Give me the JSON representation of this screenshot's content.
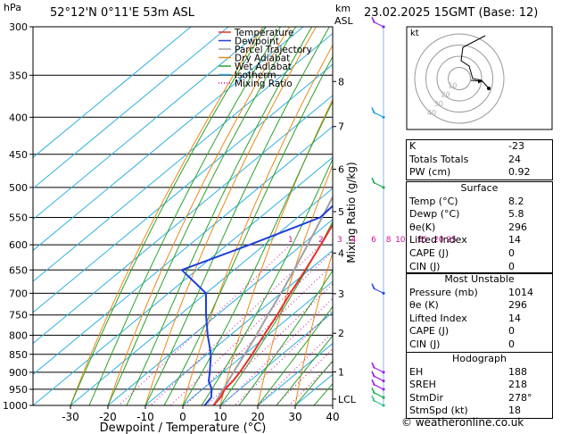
{
  "header": {
    "hpa_label": "hPa",
    "location": "52°12'N  0°11'E  53m  ASL",
    "km_label": "km",
    "asl_label": "ASL",
    "datetime": "23.02.2025  15GMT  (Base: 12)"
  },
  "chart_data": {
    "type": "skew-t",
    "xlabel": "Dewpoint / Temperature (°C)",
    "ylabel_left": "hPa",
    "ylabel_right": "Mixing Ratio (g/kg)",
    "x_ticks": [
      -30,
      -20,
      -10,
      0,
      10,
      20,
      30,
      40
    ],
    "x_range": [
      -40,
      40
    ],
    "pressure_ticks": [
      300,
      350,
      400,
      450,
      500,
      550,
      600,
      650,
      700,
      750,
      800,
      850,
      900,
      950,
      1000
    ],
    "pressure_range": [
      300,
      1000
    ],
    "km_ticks": [
      {
        "label": "8",
        "p": 357
      },
      {
        "label": "7",
        "p": 412
      },
      {
        "label": "6",
        "p": 472
      },
      {
        "label": "5",
        "p": 540
      },
      {
        "label": "4",
        "p": 616
      },
      {
        "label": "3",
        "p": 701
      },
      {
        "label": "2",
        "p": 795
      },
      {
        "label": "1",
        "p": 899
      },
      {
        "label": "LCL",
        "p": 980
      }
    ],
    "mixing_ratio_labels": [
      "1",
      "2",
      "3",
      "4",
      "6",
      "8",
      "10",
      "15",
      "20",
      "25"
    ],
    "mixing_ratio_values": [
      1,
      2,
      3,
      4,
      6,
      8,
      10,
      15,
      20,
      25
    ],
    "legend": {
      "position": "top-right",
      "entries": [
        {
          "name": "Temperature",
          "color": "#e8302a",
          "style": "solid"
        },
        {
          "name": "Dewpoint",
          "color": "#1f3fdc",
          "style": "solid"
        },
        {
          "name": "Parcel Trajectory",
          "color": "#a0a0a0",
          "style": "solid"
        },
        {
          "name": "Dry Adiabat",
          "color": "#e88a1a",
          "style": "solid"
        },
        {
          "name": "Wet Adiabat",
          "color": "#2ca02c",
          "style": "solid"
        },
        {
          "name": "Isotherm",
          "color": "#2fb0e0",
          "style": "solid"
        },
        {
          "name": "Mixing Ratio",
          "color": "#d0109a",
          "style": "dotted"
        }
      ]
    },
    "temperature": [
      {
        "p": 1000,
        "t": 8.2
      },
      {
        "p": 975,
        "t": 7.5
      },
      {
        "p": 950,
        "t": 6.0
      },
      {
        "p": 925,
        "t": 5.5
      },
      {
        "p": 900,
        "t": 4.5
      },
      {
        "p": 850,
        "t": 2.0
      },
      {
        "p": 800,
        "t": -1.0
      },
      {
        "p": 750,
        "t": -4.0
      },
      {
        "p": 700,
        "t": -7.5
      },
      {
        "p": 650,
        "t": -11.0
      },
      {
        "p": 600,
        "t": -15.0
      },
      {
        "p": 550,
        "t": -19.5
      },
      {
        "p": 500,
        "t": -23.0
      },
      {
        "p": 450,
        "t": -29.0
      },
      {
        "p": 400,
        "t": -35.0
      },
      {
        "p": 350,
        "t": -42.0
      },
      {
        "p": 300,
        "t": -50.0
      }
    ],
    "dewpoint": [
      {
        "p": 1000,
        "t": 5.8
      },
      {
        "p": 975,
        "t": 5.0
      },
      {
        "p": 950,
        "t": 2.5
      },
      {
        "p": 925,
        "t": -1.0
      },
      {
        "p": 900,
        "t": -3.5
      },
      {
        "p": 850,
        "t": -9.0
      },
      {
        "p": 800,
        "t": -16.0
      },
      {
        "p": 750,
        "t": -23.0
      },
      {
        "p": 700,
        "t": -30.0
      },
      {
        "p": 650,
        "t": -44.0
      },
      {
        "p": 600,
        "t": -34.0
      },
      {
        "p": 550,
        "t": -24.0
      },
      {
        "p": 500,
        "t": -25.0
      },
      {
        "p": 450,
        "t": -31.0
      },
      {
        "p": 400,
        "t": -36.0
      },
      {
        "p": 350,
        "t": -43.0
      },
      {
        "p": 300,
        "t": -51.0
      }
    ],
    "parcel": [
      {
        "p": 1000,
        "t": 8.2
      },
      {
        "p": 950,
        "t": 5.6
      },
      {
        "p": 900,
        "t": 2.8
      },
      {
        "p": 850,
        "t": 0.0
      },
      {
        "p": 800,
        "t": -3.0
      },
      {
        "p": 750,
        "t": -6.5
      },
      {
        "p": 700,
        "t": -10.0
      },
      {
        "p": 650,
        "t": -14.0
      },
      {
        "p": 600,
        "t": -18.5
      },
      {
        "p": 550,
        "t": -23.5
      },
      {
        "p": 500,
        "t": -29.0
      },
      {
        "p": 450,
        "t": -35.5
      },
      {
        "p": 400,
        "t": -42.5
      },
      {
        "p": 350,
        "t": -50.5
      },
      {
        "p": 300,
        "t": -59.5
      }
    ],
    "wind_barbs_p": [
      300,
      400,
      500,
      700,
      900,
      925,
      950,
      975,
      1000
    ],
    "hodograph": {
      "label": "kt",
      "ring_labels": [
        "10",
        "20",
        "30",
        "40"
      ],
      "trace_color": "#000000"
    }
  },
  "indices": {
    "k_label": "K",
    "k_value": "-23",
    "tt_label": "Totals Totals",
    "tt_value": "24",
    "pw_label": "PW (cm)",
    "pw_value": "0.92"
  },
  "surface": {
    "title": "Surface",
    "rows": [
      {
        "label": "Temp (°C)",
        "value": "8.2"
      },
      {
        "label": "Dewp (°C)",
        "value": "5.8"
      },
      {
        "label": "θe(K)",
        "value": "296"
      },
      {
        "label": "Lifted Index",
        "value": "14"
      },
      {
        "label": "CAPE (J)",
        "value": "0"
      },
      {
        "label": "CIN (J)",
        "value": "0"
      }
    ]
  },
  "most_unstable": {
    "title": "Most Unstable",
    "rows": [
      {
        "label": "Pressure (mb)",
        "value": "1014"
      },
      {
        "label": "θe (K)",
        "value": "296"
      },
      {
        "label": "Lifted Index",
        "value": "14"
      },
      {
        "label": "CAPE (J)",
        "value": "0"
      },
      {
        "label": "CIN (J)",
        "value": "0"
      }
    ]
  },
  "hodograph_table": {
    "title": "Hodograph",
    "rows": [
      {
        "label": "EH",
        "value": "188"
      },
      {
        "label": "SREH",
        "value": "218"
      },
      {
        "label": "StmDir",
        "value": "278°"
      },
      {
        "label": "StmSpd (kt)",
        "value": "18"
      }
    ]
  },
  "credit": "© weatheronline.co.uk"
}
